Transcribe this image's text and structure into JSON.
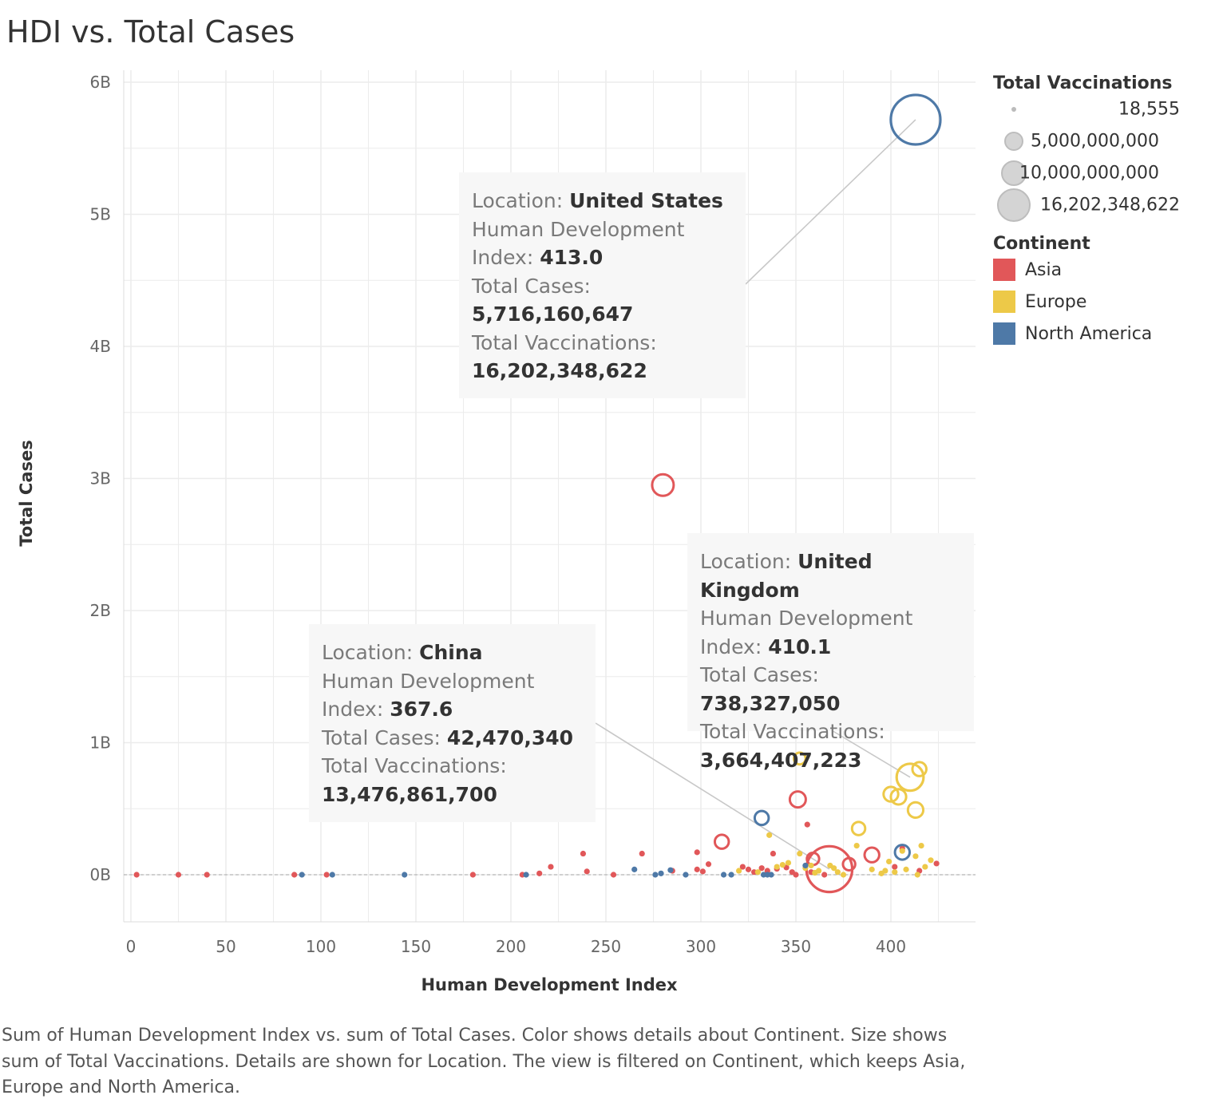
{
  "title": "HDI vs. Total Cases",
  "caption": "Sum of Human Development Index vs. sum of Total Cases.  Color shows details about Continent.  Size shows sum of Total Vaccinations.  Details are shown for Location. The view is filtered on Continent, which keeps Asia, Europe and North America.",
  "colors": {
    "Asia": "#e15759",
    "Europe": "#edc948",
    "North America": "#4e79a7",
    "gridline": "#ececec",
    "zero_line": "#aaaaaa",
    "size_legend": "#c8c8c8"
  },
  "legend": {
    "size_title": "Total Vaccinations",
    "size_entries": [
      {
        "label": "18,555",
        "value": 18555
      },
      {
        "label": "5,000,000,000",
        "value": 5000000000
      },
      {
        "label": "10,000,000,000",
        "value": 10000000000
      },
      {
        "label": "16,202,348,622",
        "value": 16202348622
      }
    ],
    "color_title": "Continent",
    "color_entries": [
      {
        "label": "Asia",
        "color": "#e15759"
      },
      {
        "label": "Europe",
        "color": "#edc948"
      },
      {
        "label": "North America",
        "color": "#4e79a7"
      }
    ]
  },
  "tooltips": [
    {
      "location_label": "Location:",
      "location": "United States",
      "hdi_label_1": "Human Development",
      "hdi_label_2": "Index:",
      "hdi": "413.0",
      "cases_label": "Total Cases:",
      "cases": "5,716,160,647",
      "vacc_label": "Total Vaccinations:",
      "vacc": "16,202,348,622"
    },
    {
      "location_label": "Location:",
      "location": "United Kingdom",
      "hdi_label_1": "Human Development",
      "hdi_label_2": "Index:",
      "hdi": "410.1",
      "cases_label": "Total Cases:",
      "cases": "738,327,050",
      "vacc_label": "Total Vaccinations:",
      "vacc": "3,664,407,223"
    },
    {
      "location_label": "Location:",
      "location": "China",
      "hdi_label_1": "Human Development",
      "hdi_label_2": "Index:",
      "hdi": "367.6",
      "cases_label": "Total Cases:",
      "cases": "42,470,340",
      "vacc_label": "Total Vaccinations:",
      "vacc": "13,476,861,700"
    }
  ],
  "chart_data": {
    "type": "scatter",
    "title": "HDI vs. Total Cases",
    "xlabel": "Human Development Index",
    "ylabel": "Total Cases",
    "xlim": [
      -4,
      444
    ],
    "ylim": [
      -350000000,
      6000000000
    ],
    "xticks": [
      0,
      50,
      100,
      150,
      200,
      250,
      300,
      350,
      400
    ],
    "xtick_labels": [
      "0",
      "50",
      "100",
      "150",
      "200",
      "250",
      "300",
      "350",
      "400"
    ],
    "yticks": [
      0,
      1000000000,
      2000000000,
      3000000000,
      4000000000,
      5000000000,
      6000000000
    ],
    "ytick_labels": [
      "0B",
      "1B",
      "2B",
      "3B",
      "4B",
      "5B",
      "6B"
    ],
    "grid": true,
    "legend": "right",
    "size_field": "Total Vaccinations",
    "color_field": "Continent",
    "series": [
      {
        "name": "Asia",
        "points": [
          [
            3,
            0,
            60000
          ],
          [
            25,
            0,
            60000
          ],
          [
            40,
            0,
            60000
          ],
          [
            86,
            0,
            60000
          ],
          [
            103,
            0,
            60000
          ],
          [
            180,
            0,
            60000
          ],
          [
            206,
            0,
            60000
          ],
          [
            215,
            10000000,
            60000
          ],
          [
            221,
            60000000,
            60000
          ],
          [
            238,
            160000000,
            60000
          ],
          [
            240,
            25000000,
            60000
          ],
          [
            254,
            0,
            60000
          ],
          [
            269,
            160000000,
            60000
          ],
          [
            280,
            2950000000,
            2000000000
          ],
          [
            285,
            30000000,
            60000
          ],
          [
            298,
            170000000,
            60000
          ],
          [
            298,
            40000000,
            60000
          ],
          [
            301,
            25000000,
            60000
          ],
          [
            304,
            80000000,
            60000
          ],
          [
            311,
            250000000,
            500000000
          ],
          [
            322,
            60000000,
            60000
          ],
          [
            325,
            40000000,
            60000
          ],
          [
            328,
            20000000,
            60000
          ],
          [
            332,
            50000000,
            60000
          ],
          [
            335,
            30000000,
            60000
          ],
          [
            338,
            160000000,
            60000
          ],
          [
            340,
            45000000,
            60000
          ],
          [
            345,
            55000000,
            60000
          ],
          [
            348,
            20000000,
            60000
          ],
          [
            350,
            0,
            60000
          ],
          [
            351,
            570000000,
            800000000
          ],
          [
            356,
            380000000,
            60000
          ],
          [
            358,
            20000000,
            60000
          ],
          [
            359,
            120000000,
            300000000
          ],
          [
            365,
            0,
            60000
          ],
          [
            367.6,
            42470340,
            13476861700
          ],
          [
            378,
            80000000,
            300000000
          ],
          [
            390,
            150000000,
            600000000
          ],
          [
            402,
            60000000,
            60000
          ],
          [
            406,
            200000000,
            60000
          ],
          [
            415,
            30000000,
            60000
          ],
          [
            424,
            85000000,
            60000
          ]
        ]
      },
      {
        "name": "Europe",
        "points": [
          [
            320,
            30000000,
            60000
          ],
          [
            330,
            20000000,
            60000
          ],
          [
            336,
            300000000,
            60000
          ],
          [
            340,
            60000000,
            60000
          ],
          [
            343,
            75000000,
            60000
          ],
          [
            346,
            90000000,
            60000
          ],
          [
            352,
            880000000,
            250000000
          ],
          [
            352,
            160000000,
            60000
          ],
          [
            355,
            50000000,
            60000
          ],
          [
            358,
            70000000,
            60000
          ],
          [
            360,
            15000000,
            60000
          ],
          [
            362,
            30000000,
            60000
          ],
          [
            368,
            70000000,
            60000
          ],
          [
            370,
            50000000,
            60000
          ],
          [
            372,
            20000000,
            60000
          ],
          [
            375,
            0,
            60000
          ],
          [
            382,
            220000000,
            60000
          ],
          [
            383,
            350000000,
            400000000
          ],
          [
            390,
            40000000,
            60000
          ],
          [
            395,
            10000000,
            60000
          ],
          [
            397,
            30000000,
            60000
          ],
          [
            399,
            100000000,
            60000
          ],
          [
            400,
            610000000,
            600000000
          ],
          [
            402,
            20000000,
            60000
          ],
          [
            404,
            590000000,
            700000000
          ],
          [
            406,
            180000000,
            60000
          ],
          [
            408,
            40000000,
            60000
          ],
          [
            410.1,
            738327050,
            3664407223
          ],
          [
            413,
            490000000,
            700000000
          ],
          [
            413,
            140000000,
            60000
          ],
          [
            414,
            0,
            60000
          ],
          [
            415,
            800000000,
            500000000
          ],
          [
            416,
            220000000,
            60000
          ],
          [
            418,
            60000000,
            60000
          ],
          [
            421,
            110000000,
            60000
          ]
        ]
      },
      {
        "name": "North America",
        "points": [
          [
            90,
            0,
            60000
          ],
          [
            106,
            0,
            60000
          ],
          [
            144,
            0,
            60000
          ],
          [
            208,
            0,
            60000
          ],
          [
            265,
            40000000,
            60000
          ],
          [
            276,
            0,
            60000
          ],
          [
            279,
            10000000,
            60000
          ],
          [
            284,
            35000000,
            60000
          ],
          [
            292,
            0,
            60000
          ],
          [
            312,
            0,
            60000
          ],
          [
            316,
            0,
            60000
          ],
          [
            332,
            430000000,
            500000000
          ],
          [
            333,
            0,
            60000
          ],
          [
            335,
            0,
            60000
          ],
          [
            337,
            0,
            60000
          ],
          [
            355,
            70000000,
            60000
          ],
          [
            406,
            170000000,
            600000000
          ],
          [
            413.0,
            5716160647,
            16202348622
          ]
        ]
      }
    ],
    "annotations": [
      {
        "location": "United States",
        "x": 413.0,
        "y": 5716160647
      },
      {
        "location": "United Kingdom",
        "x": 410.1,
        "y": 738327050
      },
      {
        "location": "China",
        "x": 367.6,
        "y": 42470340
      }
    ]
  }
}
